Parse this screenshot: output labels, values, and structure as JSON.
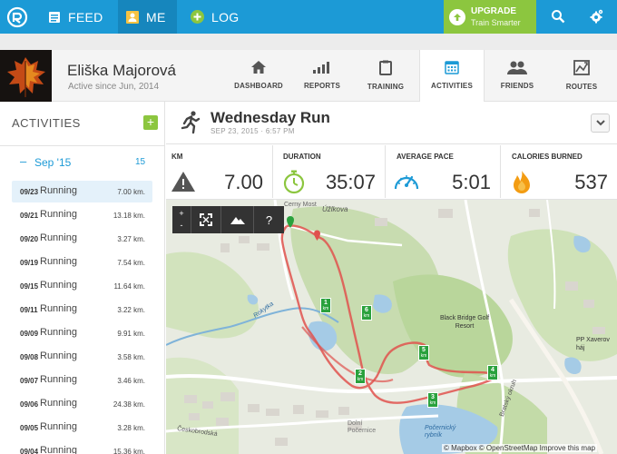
{
  "colors": {
    "brand": "#1c9ad6",
    "accent_green": "#8cc63f",
    "route": "#e0524e",
    "marker": "#2aa13d"
  },
  "nav": {
    "items": [
      {
        "label": "FEED",
        "icon": "feed-icon"
      },
      {
        "label": "ME",
        "icon": "me-icon"
      },
      {
        "label": "LOG",
        "icon": "plus-circle-icon"
      }
    ],
    "upgrade": {
      "title": "UPGRADE",
      "subtitle": "Train Smarter"
    }
  },
  "profile": {
    "name": "Eliška Majorová",
    "since": "Active since Jun, 2014",
    "tabs": [
      {
        "label": "DASHBOARD",
        "icon": "home-icon"
      },
      {
        "label": "REPORTS",
        "icon": "bar-chart-icon"
      },
      {
        "label": "TRAINING",
        "icon": "clipboard-icon"
      },
      {
        "label": "ACTIVITIES",
        "icon": "calendar-icon"
      },
      {
        "label": "FRIENDS",
        "icon": "friends-icon"
      },
      {
        "label": "ROUTES",
        "icon": "routes-icon"
      }
    ]
  },
  "sidebar": {
    "title": "ACTIVITIES",
    "add_label": "+",
    "month": {
      "dash": "–",
      "label": "Sep '15",
      "count": "15"
    },
    "items": [
      {
        "date": "09/23",
        "type": "Running",
        "dist": "7.00 km."
      },
      {
        "date": "09/21",
        "type": "Running",
        "dist": "13.18 km."
      },
      {
        "date": "09/20",
        "type": "Running",
        "dist": "3.27 km."
      },
      {
        "date": "09/19",
        "type": "Running",
        "dist": "7.54 km."
      },
      {
        "date": "09/15",
        "type": "Running",
        "dist": "11.64 km."
      },
      {
        "date": "09/11",
        "type": "Running",
        "dist": "3.22 km."
      },
      {
        "date": "09/09",
        "type": "Running",
        "dist": "9.91 km."
      },
      {
        "date": "09/08",
        "type": "Running",
        "dist": "3.58 km."
      },
      {
        "date": "09/07",
        "type": "Running",
        "dist": "3.46 km."
      },
      {
        "date": "09/06",
        "type": "Running",
        "dist": "24.38 km."
      },
      {
        "date": "09/05",
        "type": "Running",
        "dist": "3.28 km."
      },
      {
        "date": "09/04",
        "type": "Running",
        "dist": "15.36 km."
      }
    ]
  },
  "activity": {
    "title": "Wednesday Run",
    "datetime": "SEP 23, 2015  ·  6:57 PM",
    "stats": [
      {
        "label": "KM",
        "value": "7.00",
        "icon": "elevation-icon"
      },
      {
        "label": "DURATION",
        "value": "35:07",
        "icon": "stopwatch-icon"
      },
      {
        "label": "AVERAGE PACE",
        "value": "5:01",
        "icon": "gauge-icon"
      },
      {
        "label": "CALORIES BURNED",
        "value": "537",
        "icon": "flame-icon"
      }
    ]
  },
  "map": {
    "controls": {
      "zoom_in": "+",
      "zoom_out": "-",
      "help": "?"
    },
    "labels": {
      "street": "Úžlkova",
      "golf": "Black Bridge Golf Resort",
      "pond": "Počernický rybník",
      "park": "PP Xaverov háj",
      "stream": "Rokytka",
      "road1": "Českobrodská",
      "road2": "Bratský okruh",
      "road3": "Cerny Most",
      "town": "Dolní Počernice"
    },
    "km_markers": [
      {
        "n": "1",
        "unit": "km"
      },
      {
        "n": "2",
        "unit": "km"
      },
      {
        "n": "3",
        "unit": "km"
      },
      {
        "n": "4",
        "unit": "km"
      },
      {
        "n": "5",
        "unit": "km"
      },
      {
        "n": "6",
        "unit": "km"
      }
    ],
    "credit": "© Mapbox © OpenStreetMap  Improve this map"
  }
}
